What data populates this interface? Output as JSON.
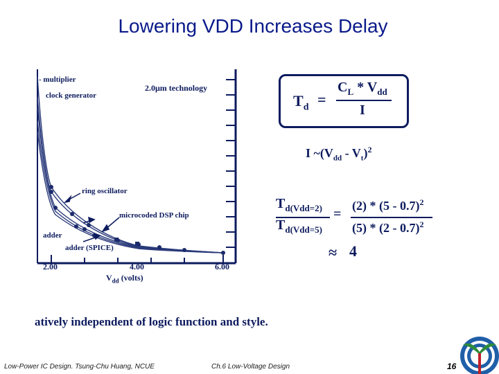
{
  "slide": {
    "title": "Lowering VDD Increases Delay",
    "footer_left": "Low-Power IC Design. Tsung-Chu Huang, NCUE",
    "footer_center": "Ch.6 Low-Voltage Design",
    "page_number": "16",
    "bottom_text": "atively independent of logic function and style."
  },
  "chart": {
    "tech_label": "2.0μm technology",
    "xlabel_main": "V",
    "xlabel_sub": "dd",
    "xlabel_unit": " (volts)",
    "ticks": [
      "2.00",
      "4.00",
      "6.00"
    ],
    "labels": {
      "multiplier": "- multiplier",
      "clock_generator": "clock generator",
      "ring_oscillator": "ring oscillator",
      "microcoded_dsp": "microcoded DSP chip",
      "adder": "adder",
      "adder_spice": "adder (SPICE)"
    }
  },
  "formulas": {
    "td_lhs": "T",
    "td_lhs_sub": "d",
    "equals": "=",
    "td_num_a": "C",
    "td_num_a_sub": "L",
    "td_num_b": " * V",
    "td_num_b_sub": "dd",
    "td_den": "I",
    "current": "I ~(V",
    "current_sub1": "dd",
    "current_mid": " - V",
    "current_sub2": "t",
    "current_end": ")",
    "current_exp": "2",
    "ratio_top": "T",
    "ratio_top_sub": "d(Vdd=2)",
    "ratio_bot": "T",
    "ratio_bot_sub": "d(Vdd=5)",
    "ratio_num": "(2) * (5 - 0.7)",
    "ratio_num_exp": "2",
    "ratio_den": "(5) * (2 - 0.7)",
    "ratio_den_exp": "2",
    "approx": "≈",
    "approx_val": "4"
  }
}
